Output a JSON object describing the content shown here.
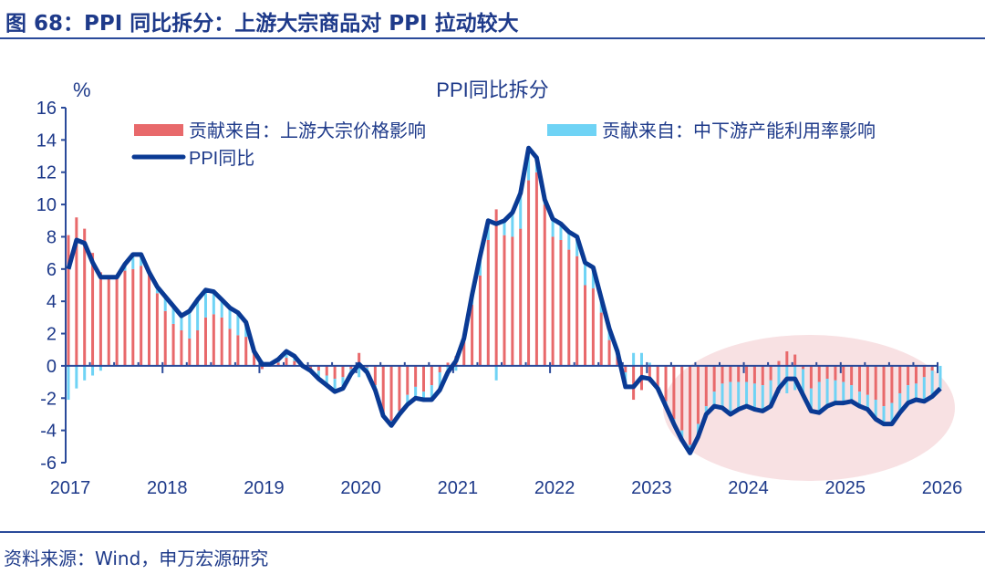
{
  "header": {
    "title": "图 68：PPI 同比拆分：上游大宗商品对 PPI 拉动较大"
  },
  "footer": {
    "source": "资料来源：Wind，申万宏源研究"
  },
  "colors": {
    "upstream": "#e8696b",
    "midstream": "#6fd3f5",
    "ppi": "#0a3a94",
    "highlight": "#f8e1e3",
    "text": "#1e3a8a"
  },
  "chart_data": {
    "type": "bar+line",
    "title": "PPI同比拆分",
    "ylabel": "%",
    "ylim": [
      -6,
      16
    ],
    "yticks": [
      "16",
      "14",
      "12",
      "10",
      "8",
      "6",
      "4",
      "2",
      "0",
      "-2",
      "-4",
      "-6"
    ],
    "xticks": [
      "2017",
      "2018",
      "2019",
      "2020",
      "2021",
      "2022",
      "2023",
      "2024",
      "2025",
      "2026"
    ],
    "x_start": "2017-01",
    "x_end": "2026-01",
    "frequency": "monthly",
    "legend_placement": "top",
    "highlight": "ellipse over 2023–2026",
    "series": [
      {
        "name": "贡献来自：上游大宗价格影响",
        "kind": "bar",
        "values": [
          8.1,
          9.2,
          8.5,
          7.0,
          5.8,
          5.5,
          5.5,
          5.9,
          6.0,
          6.2,
          5.8,
          4.5,
          3.4,
          2.6,
          2.2,
          1.7,
          2.2,
          3.0,
          3.2,
          3.0,
          2.3,
          1.9,
          1.8,
          0.8,
          -0.2,
          0.0,
          0.2,
          0.5,
          0.3,
          0.1,
          -0.2,
          -0.3,
          -0.6,
          -0.8,
          -0.7,
          -0.2,
          0.8,
          -0.1,
          -1.2,
          -2.9,
          -3.4,
          -2.8,
          -1.8,
          -1.3,
          -1.6,
          -1.2,
          -0.4,
          0.2,
          0.6,
          1.5,
          3.8,
          5.6,
          7.8,
          9.7,
          8.1,
          8.0,
          8.5,
          11.5,
          12.0,
          10.0,
          8.0,
          7.8,
          7.2,
          6.8,
          5.0,
          4.8,
          3.3,
          1.6,
          0.6,
          -0.4,
          -2.1,
          -1.5,
          -1.0,
          -1.3,
          -2.2,
          -3.3,
          -4.0,
          -4.9,
          -3.6,
          -2.5,
          -1.6,
          -1.1,
          -1.0,
          -1.0,
          -1.0,
          -1.1,
          -1.2,
          -0.9,
          0.3,
          0.9,
          0.7,
          -0.2,
          -1.4,
          -1.0,
          -0.8,
          -0.9,
          -1.0,
          -1.2,
          -1.6,
          -1.8,
          -2.1,
          -2.5,
          -2.3,
          -1.7,
          -1.2,
          -1.1,
          -0.7,
          -0.3,
          0.0
        ]
      },
      {
        "name": "贡献来自：中下游产能利用率影响",
        "kind": "bar",
        "values": [
          -2.1,
          -1.4,
          -0.9,
          -0.6,
          -0.3,
          0.0,
          0.0,
          0.4,
          0.9,
          0.7,
          0.0,
          0.4,
          0.9,
          1.1,
          0.9,
          1.7,
          1.9,
          1.7,
          1.4,
          1.1,
          1.3,
          1.4,
          0.9,
          0.1,
          0.3,
          0.1,
          0.2,
          0.4,
          0.3,
          -0.1,
          -0.1,
          -0.5,
          -0.6,
          -0.8,
          -0.7,
          -0.3,
          -0.7,
          -0.3,
          -0.3,
          -0.2,
          -0.3,
          -0.2,
          -0.6,
          -0.7,
          -0.5,
          -0.9,
          -1.1,
          -0.6,
          -0.3,
          0.2,
          0.6,
          1.2,
          1.2,
          -0.9,
          0.9,
          1.5,
          2.2,
          2.0,
          0.9,
          0.3,
          1.1,
          1.0,
          1.1,
          1.2,
          1.4,
          1.3,
          0.9,
          0.7,
          0.3,
          -0.9,
          0.8,
          0.8,
          0.2,
          -0.1,
          -0.3,
          -0.3,
          -0.6,
          -0.5,
          -0.8,
          -0.5,
          -0.9,
          -1.5,
          -2.0,
          -1.7,
          -1.5,
          -1.6,
          -1.6,
          -1.6,
          -1.7,
          -1.7,
          -1.5,
          -1.6,
          -1.4,
          -1.9,
          -1.7,
          -1.4,
          -1.3,
          -1.0,
          -0.9,
          -0.9,
          -1.2,
          -1.1,
          -1.3,
          -1.2,
          -1.1,
          -1.0,
          -1.5,
          -1.6,
          -1.4
        ]
      },
      {
        "name": "PPI同比",
        "kind": "line",
        "values": [
          6.0,
          7.8,
          7.6,
          6.4,
          5.5,
          5.5,
          5.5,
          6.3,
          6.9,
          6.9,
          5.8,
          4.9,
          4.3,
          3.7,
          3.1,
          3.4,
          4.1,
          4.7,
          4.6,
          4.1,
          3.6,
          3.3,
          2.7,
          0.9,
          0.1,
          0.1,
          0.4,
          0.9,
          0.6,
          0.0,
          -0.3,
          -0.8,
          -1.2,
          -1.6,
          -1.4,
          -0.5,
          0.1,
          -0.4,
          -1.5,
          -3.1,
          -3.7,
          -3.0,
          -2.4,
          -2.0,
          -2.1,
          -2.1,
          -1.5,
          -0.4,
          0.3,
          1.7,
          4.4,
          6.8,
          9.0,
          8.8,
          9.0,
          9.5,
          10.7,
          13.5,
          12.9,
          10.3,
          9.1,
          8.8,
          8.3,
          8.0,
          6.4,
          6.1,
          4.2,
          2.3,
          0.9,
          -1.3,
          -1.3,
          -0.7,
          -0.8,
          -1.4,
          -2.5,
          -3.6,
          -4.6,
          -5.4,
          -4.4,
          -3.0,
          -2.5,
          -2.6,
          -3.0,
          -2.7,
          -2.5,
          -2.7,
          -2.8,
          -2.5,
          -1.4,
          -0.8,
          -0.8,
          -1.8,
          -2.8,
          -2.9,
          -2.5,
          -2.3,
          -2.3,
          -2.2,
          -2.5,
          -2.7,
          -3.3,
          -3.6,
          -3.6,
          -2.9,
          -2.3,
          -2.1,
          -2.2,
          -1.9,
          -1.4
        ]
      }
    ]
  }
}
